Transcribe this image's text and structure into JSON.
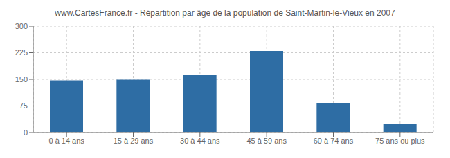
{
  "chart_data": {
    "type": "bar",
    "title": "www.CartesFrance.fr - Répartition par âge de la population de Saint-Martin-le-Vieux en 2007",
    "categories": [
      "0 à 14 ans",
      "15 à 29 ans",
      "30 à 44 ans",
      "45 à 59 ans",
      "60 à 74 ans",
      "75 ans ou plus"
    ],
    "values": [
      147,
      149,
      163,
      230,
      82,
      25
    ],
    "color": "#2e6da4",
    "ylim": [
      0,
      300
    ],
    "yticks": [
      0,
      75,
      150,
      225,
      300
    ],
    "grid": true
  }
}
